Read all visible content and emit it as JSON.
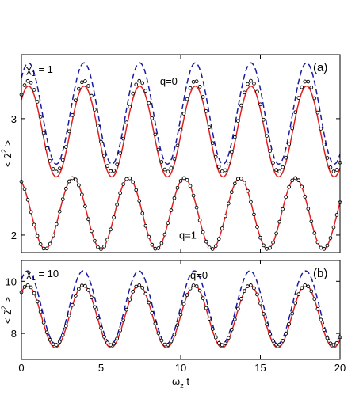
{
  "colors": {
    "sim": "#1a1aa0",
    "model": "#e02020",
    "data_markers": "#000000",
    "axes": "#000000"
  },
  "chart_data": [
    {
      "type": "line",
      "panel_label": "(a)",
      "annotation": "χ1 = 1",
      "ylabel": "<z̃²>",
      "xlabel": "",
      "xlim": [
        0,
        20
      ],
      "ylim": [
        1.85,
        3.55
      ],
      "yticks": [
        2,
        3
      ],
      "xticks": [
        0,
        5,
        10,
        15,
        20
      ],
      "grid": false,
      "curve_labels": [
        {
          "text": "q=0",
          "x": 8.7,
          "y": 3.29
        },
        {
          "text": "q=1",
          "x": 9.9,
          "y": 1.97
        }
      ],
      "series": [
        {
          "style": "dashed-blue",
          "group": "q=0",
          "mean": 3.045,
          "amplitude": 0.435,
          "omega": 1.8,
          "phase": -0.8
        },
        {
          "style": "solid-red",
          "group": "q=0",
          "mean": 2.89,
          "amplitude": 0.39,
          "omega": 1.8,
          "phase": -0.8
        },
        {
          "style": "open-circles",
          "group": "q=0",
          "mean": 2.935,
          "amplitude": 0.39,
          "omega": 1.8,
          "phase": -0.8,
          "spacing": 0.2
        },
        {
          "style": "solid-red",
          "group": "q=1",
          "mean": 2.185,
          "amplitude": 0.305,
          "omega": 1.8,
          "phase": 0.45
        },
        {
          "style": "open-circles",
          "group": "q=1",
          "mean": 2.185,
          "amplitude": 0.305,
          "omega": 1.8,
          "phase": 0.45,
          "spacing": 0.2
        }
      ]
    },
    {
      "type": "line",
      "panel_label": "(b)",
      "annotation": "χ1 = 10",
      "ylabel": "<z̃²>",
      "xlabel": "ωz t",
      "xlim": [
        0,
        20
      ],
      "ylim": [
        7.0,
        10.8
      ],
      "yticks": [
        8,
        10
      ],
      "xticks": [
        0,
        5,
        10,
        15,
        20
      ],
      "xticklabels": [
        "0",
        "5",
        "10",
        "15",
        "20"
      ],
      "grid": false,
      "curve_labels": [
        {
          "text": "q=0",
          "x": 10.6,
          "y": 10.1
        }
      ],
      "series": [
        {
          "style": "dashed-blue",
          "group": "q=0",
          "mean": 9.0,
          "amplitude": 1.4,
          "omega": 1.8,
          "phase": -0.7
        },
        {
          "style": "solid-red",
          "group": "q=0",
          "mean": 8.65,
          "amplitude": 1.2,
          "omega": 1.8,
          "phase": -0.7
        },
        {
          "style": "open-circles",
          "group": "q=0",
          "mean": 8.7,
          "amplitude": 1.15,
          "omega": 1.8,
          "phase": -0.7,
          "spacing": 0.2
        }
      ]
    }
  ]
}
